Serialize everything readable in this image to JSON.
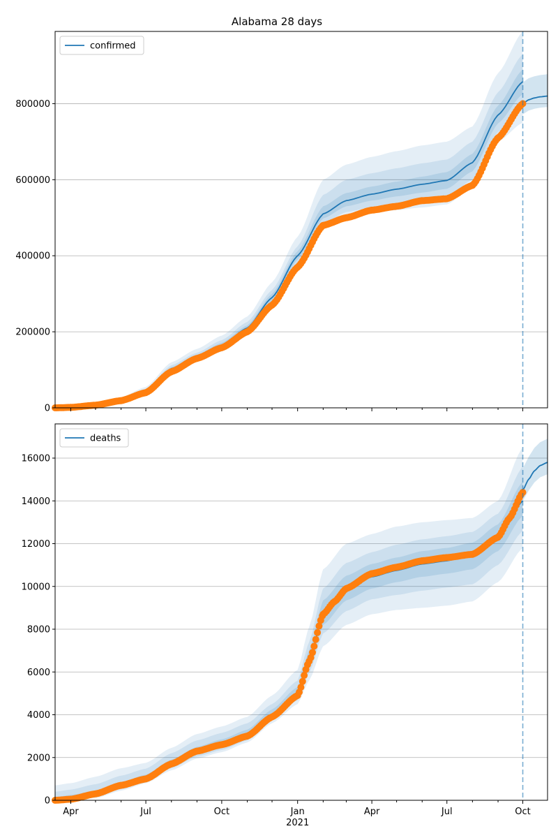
{
  "chart_data": [
    {
      "type": "line",
      "title": "Alabama 28 days",
      "legend": {
        "label": "confirmed",
        "placement": "top-left"
      },
      "xlabel": "",
      "ylabel": "",
      "ylim": [
        0,
        990000
      ],
      "yticks": [
        0,
        200000,
        400000,
        600000,
        800000
      ],
      "ytick_labels": [
        "0",
        "200000",
        "400000",
        "600000",
        "800000"
      ],
      "grid": "y",
      "forecast_start": "2021-10-01",
      "colors": {
        "line": "#1f77b4",
        "observed": "#ff7f0e",
        "band": "#1f77b4"
      },
      "model": {
        "x": [
          "2020-03-13",
          "2020-04-01",
          "2020-05-01",
          "2020-06-01",
          "2020-07-01",
          "2020-08-01",
          "2020-09-01",
          "2020-10-01",
          "2020-11-01",
          "2020-12-01",
          "2021-01-01",
          "2021-02-01",
          "2021-03-01",
          "2021-04-01",
          "2021-05-01",
          "2021-06-01",
          "2021-07-01",
          "2021-08-01",
          "2021-09-01",
          "2021-10-01"
        ],
        "values": [
          0,
          2000,
          8000,
          22000,
          45000,
          103000,
          135000,
          165000,
          210000,
          290000,
          400000,
          510000,
          545000,
          562000,
          575000,
          588000,
          598000,
          645000,
          770000,
          858000
        ]
      },
      "forecast": {
        "x": [
          "2021-10-01",
          "2021-10-08",
          "2021-10-15",
          "2021-10-22",
          "2021-10-31"
        ],
        "values": [
          800000,
          810000,
          815000,
          818000,
          820000
        ]
      },
      "bands": [
        {
          "level": "outer",
          "lower": [
            0,
            1000,
            5000,
            17000,
            38000,
            90000,
            122000,
            148000,
            190000,
            260000,
            360000,
            470000,
            500000,
            512000,
            520000,
            527000,
            535000,
            580000,
            700000,
            750000
          ],
          "upper": [
            1000,
            4000,
            12000,
            28000,
            55000,
            120000,
            155000,
            190000,
            240000,
            330000,
            450000,
            600000,
            640000,
            660000,
            675000,
            690000,
            700000,
            740000,
            880000,
            990000
          ]
        },
        {
          "level": "middle",
          "lower": [
            0,
            1500,
            6000,
            19000,
            40000,
            95000,
            127000,
            155000,
            198000,
            272000,
            378000,
            485000,
            515000,
            528000,
            537000,
            545000,
            553000,
            600000,
            725000,
            790000
          ],
          "upper": [
            500,
            3000,
            10000,
            25000,
            50000,
            112000,
            145000,
            178000,
            226000,
            310000,
            425000,
            560000,
            600000,
            617000,
            630000,
            643000,
            653000,
            700000,
            830000,
            930000
          ]
        },
        {
          "level": "inner",
          "lower": [
            0,
            1800,
            7000,
            21000,
            43000,
            99000,
            131000,
            160000,
            204000,
            281000,
            390000,
            498000,
            530000,
            545000,
            556000,
            566000,
            576000,
            622000,
            748000,
            825000
          ],
          "upper": [
            200,
            2500,
            9000,
            23500,
            47000,
            107000,
            140000,
            171000,
            217000,
            300000,
            412000,
            530000,
            565000,
            582000,
            595000,
            608000,
            620000,
            668000,
            795000,
            890000
          ]
        }
      ],
      "observed": {
        "x": [
          "2020-03-13",
          "2020-04-01",
          "2020-05-01",
          "2020-06-01",
          "2020-07-01",
          "2020-08-01",
          "2020-09-01",
          "2020-10-01",
          "2020-11-01",
          "2020-12-01",
          "2021-01-01",
          "2021-02-01",
          "2021-03-01",
          "2021-04-01",
          "2021-05-01",
          "2021-06-01",
          "2021-07-01",
          "2021-08-01",
          "2021-09-01",
          "2021-10-01"
        ],
        "values": [
          0,
          1200,
          7000,
          19000,
          40000,
          95000,
          130000,
          158000,
          200000,
          270000,
          370000,
          480000,
          500000,
          520000,
          530000,
          545000,
          550000,
          585000,
          710000,
          800000
        ]
      }
    },
    {
      "type": "line",
      "title": "",
      "legend": {
        "label": "deaths",
        "placement": "top-left"
      },
      "xlabel": "",
      "ylabel": "",
      "ylim": [
        0,
        17600
      ],
      "yticks": [
        0,
        2000,
        4000,
        6000,
        8000,
        10000,
        12000,
        14000,
        16000
      ],
      "ytick_labels": [
        "0",
        "2000",
        "4000",
        "6000",
        "8000",
        "10000",
        "12000",
        "14000",
        "16000"
      ],
      "xlim": [
        "2020-03-13",
        "2021-10-31"
      ],
      "xtick_labels": [
        {
          "date": "2020-04-01",
          "label": "Apr"
        },
        {
          "date": "2020-07-01",
          "label": "Jul"
        },
        {
          "date": "2020-10-01",
          "label": "Oct"
        },
        {
          "date": "2021-01-01",
          "label": "Jan",
          "sublabel": "2021"
        },
        {
          "date": "2021-04-01",
          "label": "Apr"
        },
        {
          "date": "2021-07-01",
          "label": "Jul"
        },
        {
          "date": "2021-10-01",
          "label": "Oct"
        }
      ],
      "grid": "y",
      "forecast_start": "2021-10-01",
      "colors": {
        "line": "#1f77b4",
        "observed": "#ff7f0e",
        "band": "#1f77b4"
      },
      "model": {
        "x": [
          "2020-03-13",
          "2020-04-01",
          "2020-05-01",
          "2020-06-01",
          "2020-07-01",
          "2020-08-01",
          "2020-09-01",
          "2020-10-01",
          "2020-11-01",
          "2020-12-01",
          "2021-01-01",
          "2021-01-15",
          "2021-02-01",
          "2021-03-01",
          "2021-04-01",
          "2021-05-01",
          "2021-06-01",
          "2021-07-01",
          "2021-08-01",
          "2021-09-01",
          "2021-10-01"
        ],
        "values": [
          0,
          20,
          250,
          650,
          1000,
          1700,
          2250,
          2550,
          3000,
          4000,
          5000,
          6500,
          8700,
          9900,
          10450,
          10750,
          11050,
          11200,
          11500,
          12300,
          14000
        ]
      },
      "forecast": {
        "x": [
          "2021-10-01",
          "2021-10-08",
          "2021-10-15",
          "2021-10-22",
          "2021-10-31"
        ],
        "values": [
          14500,
          15000,
          15400,
          15650,
          15800
        ]
      },
      "bands": [
        {
          "level": "outer",
          "lower": [
            0,
            0,
            100,
            450,
            800,
            1400,
            1950,
            2250,
            2700,
            3600,
            4500,
            5600,
            7200,
            8200,
            8700,
            8900,
            9000,
            9100,
            9300,
            10200,
            11800
          ],
          "upper": [
            700,
            800,
            1100,
            1500,
            1750,
            2450,
            3100,
            3450,
            3900,
            4900,
            6100,
            8100,
            10800,
            12000,
            12450,
            12800,
            13000,
            13100,
            13200,
            14000,
            16500
          ]
        },
        {
          "level": "middle",
          "lower": [
            0,
            5,
            150,
            520,
            870,
            1500,
            2050,
            2350,
            2800,
            3750,
            4680,
            5950,
            7800,
            8850,
            9400,
            9600,
            9800,
            9950,
            10100,
            11000,
            12600
          ],
          "upper": [
            400,
            500,
            750,
            1150,
            1480,
            2200,
            2800,
            3150,
            3600,
            4500,
            5600,
            7400,
            9900,
            11100,
            11600,
            11950,
            12200,
            12350,
            12550,
            13400,
            15600
          ]
        },
        {
          "level": "inner",
          "lower": [
            0,
            10,
            200,
            580,
            930,
            1600,
            2150,
            2450,
            2900,
            3850,
            4820,
            6200,
            8200,
            9350,
            9900,
            10200,
            10450,
            10600,
            10800,
            11650,
            13300
          ],
          "upper": [
            150,
            250,
            450,
            850,
            1200,
            1900,
            2500,
            2850,
            3300,
            4250,
            5300,
            7000,
            9350,
            10500,
            11050,
            11350,
            11650,
            11800,
            12050,
            12900,
            14900
          ]
        }
      ],
      "observed": {
        "x": [
          "2020-03-13",
          "2020-04-01",
          "2020-05-01",
          "2020-06-01",
          "2020-07-01",
          "2020-08-01",
          "2020-09-01",
          "2020-10-01",
          "2020-11-01",
          "2020-12-01",
          "2021-01-01",
          "2021-01-15",
          "2021-02-01",
          "2021-02-15",
          "2021-03-01",
          "2021-04-01",
          "2021-05-01",
          "2021-06-01",
          "2021-07-01",
          "2021-08-01",
          "2021-09-01",
          "2021-09-15",
          "2021-10-01"
        ],
        "values": [
          0,
          50,
          300,
          700,
          1000,
          1700,
          2300,
          2600,
          3000,
          3900,
          4900,
          6500,
          8700,
          9300,
          9900,
          10600,
          10900,
          11200,
          11350,
          11500,
          12300,
          13200,
          14400
        ]
      }
    }
  ]
}
